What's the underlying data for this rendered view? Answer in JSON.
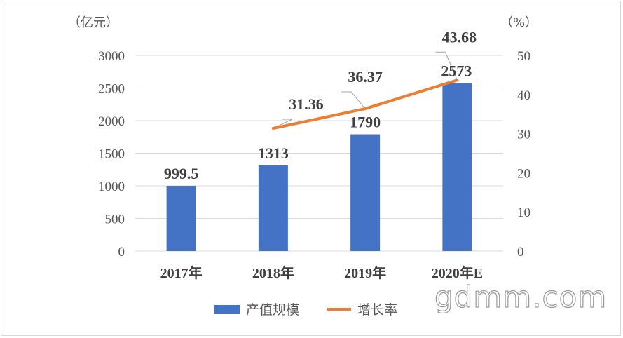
{
  "chart_data": {
    "type": "bar",
    "categories": [
      "2017年",
      "2018年",
      "2019年",
      "2020年E"
    ],
    "left_axis_unit": "（亿元）",
    "right_axis_unit": "（%）",
    "left_ticks": [
      "0",
      "500",
      "1000",
      "1500",
      "2000",
      "2500",
      "3000"
    ],
    "right_ticks": [
      "0",
      "10",
      "20",
      "30",
      "40",
      "50"
    ],
    "ylim_left": [
      0,
      3000
    ],
    "ylim_right": [
      0,
      50
    ],
    "series": [
      {
        "name": "产值规模",
        "type": "bar",
        "axis": "left",
        "color": "#4472C4",
        "values": [
          999.5,
          1313,
          1790,
          2573
        ],
        "labels": [
          "999.5",
          "1313",
          "1790",
          "2573"
        ]
      },
      {
        "name": "增长率",
        "type": "line",
        "axis": "right",
        "color": "#ED7D31",
        "values": [
          null,
          31.36,
          36.37,
          43.68
        ],
        "labels": [
          "",
          "31.36",
          "36.37",
          "43.68"
        ]
      }
    ],
    "grid": true,
    "legend_position": "bottom"
  },
  "watermark": "gdmm.com",
  "colors": {
    "bar": "#4472C4",
    "line": "#ED7D31",
    "grid": "#d9d9d9",
    "leader": "#a6a6a6"
  }
}
